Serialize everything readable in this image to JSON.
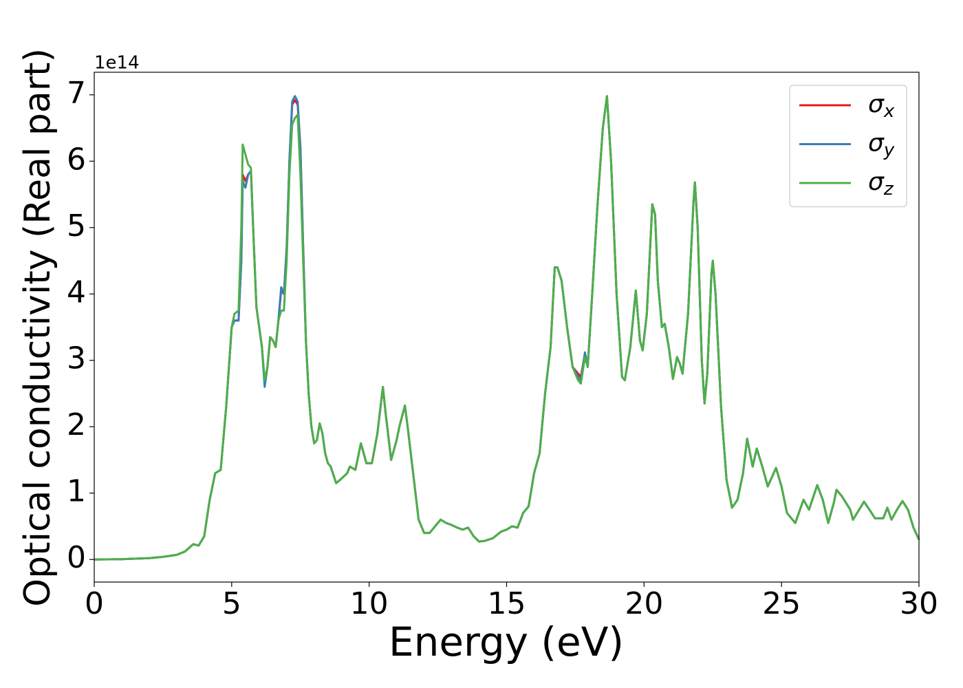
{
  "chart_data": {
    "type": "line",
    "y_label": "Optical conductivity (Real part)",
    "x_label": "Energy (eV)",
    "y_offset_label": "1e14",
    "xlim": [
      0,
      30
    ],
    "xticks": [
      0,
      5,
      10,
      15,
      20,
      25,
      30
    ],
    "ylim": [
      -0.34,
      7.34
    ],
    "yticks": [
      0,
      1,
      2,
      3,
      4,
      5,
      6,
      7
    ],
    "legend": "upper right",
    "x": [
      0,
      1,
      2,
      2.5,
      3,
      3.3,
      3.6,
      3.8,
      4.0,
      4.2,
      4.4,
      4.6,
      4.8,
      5.0,
      5.1,
      5.25,
      5.35,
      5.4,
      5.5,
      5.6,
      5.7,
      5.8,
      5.9,
      6.0,
      6.1,
      6.2,
      6.3,
      6.4,
      6.5,
      6.6,
      6.7,
      6.8,
      6.9,
      7.0,
      7.1,
      7.2,
      7.3,
      7.4,
      7.5,
      7.6,
      7.7,
      7.8,
      7.9,
      8.0,
      8.1,
      8.2,
      8.3,
      8.4,
      8.5,
      8.6,
      8.8,
      9.0,
      9.2,
      9.3,
      9.5,
      9.7,
      9.9,
      10.1,
      10.3,
      10.5,
      10.6,
      10.8,
      11.0,
      11.1,
      11.3,
      11.4,
      11.6,
      11.8,
      12.0,
      12.2,
      12.4,
      12.6,
      12.8,
      13.0,
      13.2,
      13.4,
      13.6,
      13.8,
      14.0,
      14.2,
      14.5,
      14.8,
      15.0,
      15.2,
      15.4,
      15.6,
      15.8,
      16.0,
      16.2,
      16.4,
      16.6,
      16.75,
      16.85,
      17.0,
      17.2,
      17.4,
      17.6,
      17.7,
      17.85,
      17.95,
      18.1,
      18.3,
      18.5,
      18.65,
      18.8,
      19.0,
      19.2,
      19.3,
      19.5,
      19.7,
      19.85,
      19.95,
      20.1,
      20.3,
      20.4,
      20.5,
      20.65,
      20.75,
      20.9,
      21.05,
      21.2,
      21.3,
      21.4,
      21.6,
      21.8,
      21.85,
      21.95,
      22.1,
      22.2,
      22.3,
      22.45,
      22.5,
      22.6,
      22.8,
      23.0,
      23.2,
      23.4,
      23.6,
      23.75,
      23.95,
      24.1,
      24.3,
      24.5,
      24.8,
      25.0,
      25.2,
      25.5,
      25.8,
      26.0,
      26.3,
      26.5,
      26.7,
      26.9,
      27.0,
      27.2,
      27.5,
      27.6,
      28.0,
      28.2,
      28.4,
      28.7,
      28.85,
      29.0,
      29.2,
      29.4,
      29.6,
      29.8,
      30.0
    ],
    "series": [
      {
        "name": "σx",
        "color": "#e41a1c",
        "values": [
          0,
          0.005,
          0.02,
          0.04,
          0.07,
          0.12,
          0.23,
          0.21,
          0.35,
          0.9,
          1.3,
          1.35,
          2.3,
          3.5,
          3.6,
          3.6,
          4.5,
          5.8,
          5.7,
          5.8,
          5.85,
          4.8,
          3.8,
          3.5,
          3.2,
          2.65,
          2.9,
          3.35,
          3.3,
          3.2,
          3.6,
          4.05,
          4.0,
          4.7,
          6.0,
          6.85,
          6.92,
          6.85,
          6.2,
          4.7,
          3.3,
          2.5,
          2.0,
          1.75,
          1.8,
          2.05,
          1.9,
          1.6,
          1.45,
          1.4,
          1.15,
          1.22,
          1.3,
          1.4,
          1.35,
          1.75,
          1.45,
          1.45,
          1.9,
          2.6,
          2.2,
          1.5,
          1.8,
          2.0,
          2.32,
          2.0,
          1.3,
          0.6,
          0.4,
          0.4,
          0.5,
          0.6,
          0.55,
          0.52,
          0.48,
          0.45,
          0.48,
          0.35,
          0.27,
          0.28,
          0.32,
          0.42,
          0.45,
          0.5,
          0.48,
          0.7,
          0.8,
          1.3,
          1.6,
          2.5,
          3.2,
          4.4,
          4.4,
          4.2,
          3.5,
          2.9,
          2.8,
          2.75,
          3.1,
          2.9,
          3.9,
          5.3,
          6.5,
          6.98,
          6.0,
          4.0,
          2.75,
          2.7,
          3.2,
          4.05,
          3.3,
          3.15,
          3.7,
          5.35,
          5.2,
          4.2,
          3.5,
          3.55,
          3.2,
          2.72,
          3.05,
          2.95,
          2.8,
          3.7,
          5.4,
          5.68,
          5.0,
          3.0,
          2.35,
          2.8,
          4.3,
          4.5,
          4.0,
          2.3,
          1.2,
          0.78,
          0.9,
          1.3,
          1.82,
          1.4,
          1.67,
          1.4,
          1.1,
          1.38,
          1.1,
          0.7,
          0.55,
          0.9,
          0.75,
          1.12,
          0.9,
          0.55,
          0.85,
          1.05,
          0.95,
          0.75,
          0.6,
          0.87,
          0.75,
          0.62,
          0.62,
          0.78,
          0.6,
          0.75,
          0.88,
          0.75,
          0.48,
          0.3
        ]
      },
      {
        "name": "σy",
        "color": "#377eb8",
        "values": [
          0,
          0.005,
          0.02,
          0.04,
          0.07,
          0.12,
          0.23,
          0.21,
          0.35,
          0.9,
          1.3,
          1.35,
          2.3,
          3.5,
          3.6,
          3.6,
          4.5,
          5.7,
          5.6,
          5.8,
          5.85,
          4.8,
          3.8,
          3.5,
          3.2,
          2.6,
          2.9,
          3.35,
          3.3,
          3.2,
          3.6,
          4.1,
          4.0,
          4.7,
          6.0,
          6.9,
          6.98,
          6.9,
          6.2,
          4.7,
          3.3,
          2.5,
          2.0,
          1.75,
          1.8,
          2.05,
          1.9,
          1.6,
          1.45,
          1.4,
          1.15,
          1.22,
          1.3,
          1.4,
          1.35,
          1.75,
          1.45,
          1.45,
          1.9,
          2.6,
          2.2,
          1.5,
          1.8,
          2.0,
          2.32,
          2.0,
          1.3,
          0.6,
          0.4,
          0.4,
          0.5,
          0.6,
          0.55,
          0.52,
          0.48,
          0.45,
          0.48,
          0.35,
          0.27,
          0.28,
          0.32,
          0.42,
          0.45,
          0.5,
          0.48,
          0.7,
          0.8,
          1.3,
          1.6,
          2.5,
          3.2,
          4.4,
          4.4,
          4.2,
          3.5,
          2.9,
          2.75,
          2.7,
          3.12,
          2.9,
          3.9,
          5.3,
          6.5,
          6.98,
          6.0,
          4.0,
          2.75,
          2.7,
          3.2,
          4.05,
          3.3,
          3.15,
          3.7,
          5.35,
          5.2,
          4.2,
          3.5,
          3.55,
          3.2,
          2.72,
          3.05,
          2.95,
          2.8,
          3.7,
          5.4,
          5.68,
          5.0,
          3.0,
          2.35,
          2.8,
          4.3,
          4.5,
          4.0,
          2.3,
          1.2,
          0.78,
          0.9,
          1.3,
          1.82,
          1.4,
          1.67,
          1.4,
          1.1,
          1.38,
          1.1,
          0.7,
          0.55,
          0.9,
          0.75,
          1.12,
          0.9,
          0.55,
          0.85,
          1.05,
          0.95,
          0.75,
          0.6,
          0.87,
          0.75,
          0.62,
          0.62,
          0.78,
          0.6,
          0.75,
          0.88,
          0.75,
          0.48,
          0.3
        ]
      },
      {
        "name": "σz",
        "color": "#4daf4a",
        "values": [
          0,
          0.005,
          0.02,
          0.04,
          0.07,
          0.12,
          0.23,
          0.21,
          0.35,
          0.9,
          1.3,
          1.35,
          2.3,
          3.5,
          3.7,
          3.75,
          5.0,
          6.25,
          6.1,
          5.95,
          5.9,
          4.8,
          3.8,
          3.5,
          3.2,
          2.7,
          2.9,
          3.35,
          3.3,
          3.2,
          3.6,
          3.75,
          3.75,
          4.5,
          5.8,
          6.55,
          6.65,
          6.7,
          5.8,
          4.5,
          3.3,
          2.5,
          2.0,
          1.75,
          1.8,
          2.05,
          1.9,
          1.6,
          1.45,
          1.4,
          1.15,
          1.22,
          1.3,
          1.4,
          1.35,
          1.75,
          1.45,
          1.45,
          1.9,
          2.6,
          2.2,
          1.5,
          1.8,
          2.0,
          2.32,
          2.0,
          1.3,
          0.6,
          0.4,
          0.4,
          0.5,
          0.6,
          0.55,
          0.52,
          0.48,
          0.45,
          0.48,
          0.35,
          0.27,
          0.28,
          0.32,
          0.42,
          0.45,
          0.5,
          0.48,
          0.7,
          0.8,
          1.3,
          1.6,
          2.5,
          3.2,
          4.4,
          4.4,
          4.2,
          3.5,
          2.9,
          2.7,
          2.65,
          3.05,
          2.9,
          3.9,
          5.3,
          6.5,
          6.98,
          6.0,
          4.0,
          2.75,
          2.7,
          3.2,
          4.05,
          3.3,
          3.15,
          3.7,
          5.35,
          5.2,
          4.2,
          3.5,
          3.55,
          3.2,
          2.72,
          3.05,
          2.95,
          2.8,
          3.7,
          5.4,
          5.68,
          5.0,
          3.0,
          2.35,
          2.8,
          4.3,
          4.5,
          4.0,
          2.3,
          1.2,
          0.78,
          0.9,
          1.3,
          1.82,
          1.4,
          1.67,
          1.4,
          1.1,
          1.38,
          1.1,
          0.7,
          0.55,
          0.9,
          0.75,
          1.12,
          0.9,
          0.55,
          0.85,
          1.05,
          0.95,
          0.75,
          0.6,
          0.87,
          0.75,
          0.62,
          0.62,
          0.78,
          0.6,
          0.75,
          0.88,
          0.75,
          0.48,
          0.3
        ]
      }
    ]
  }
}
